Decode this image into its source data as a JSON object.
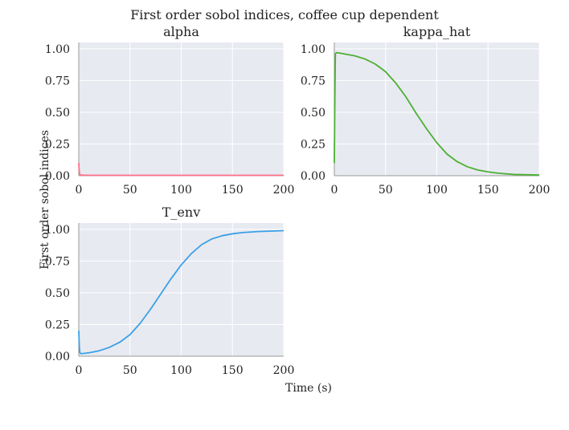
{
  "figure": {
    "title": "First order sobol indices, coffee cup dependent",
    "xlabel": "Time (s)",
    "ylabel": "First order sobol indices"
  },
  "colors": {
    "panel_bg": "#E8EAF1",
    "grid": "#FFFFFF",
    "axis_line": "#999999",
    "alpha": "#FF6F8A",
    "kappa_hat": "#4CB034",
    "T_env": "#3BA0E6"
  },
  "chart_data": [
    {
      "type": "line",
      "title": "alpha",
      "xlim": [
        0,
        200
      ],
      "ylim": [
        0,
        1.05
      ],
      "xticks": [
        0,
        50,
        100,
        150,
        200
      ],
      "yticks": [
        "0.00",
        "0.25",
        "0.50",
        "0.75",
        "1.00"
      ],
      "grid": true,
      "series": [
        {
          "color_key": "alpha",
          "x": [
            0,
            0.5,
            1,
            2,
            5,
            10,
            25,
            50,
            100,
            150,
            200
          ],
          "y": [
            0.1,
            0.03,
            0.01,
            0.005,
            0.004,
            0.003,
            0.003,
            0.003,
            0.003,
            0.003,
            0.003
          ]
        }
      ]
    },
    {
      "type": "line",
      "title": "kappa_hat",
      "xlim": [
        0,
        200
      ],
      "ylim": [
        0,
        1.05
      ],
      "xticks": [
        0,
        50,
        100,
        150,
        200
      ],
      "yticks": [
        "0.00",
        "0.25",
        "0.50",
        "0.75",
        "1.00"
      ],
      "grid": true,
      "series": [
        {
          "color_key": "kappa_hat",
          "x": [
            0,
            0.5,
            1,
            2,
            5,
            10,
            20,
            30,
            40,
            50,
            60,
            70,
            80,
            90,
            100,
            110,
            120,
            130,
            140,
            150,
            160,
            175,
            200
          ],
          "y": [
            0.1,
            0.6,
            0.96,
            0.97,
            0.967,
            0.96,
            0.945,
            0.92,
            0.88,
            0.82,
            0.73,
            0.62,
            0.49,
            0.37,
            0.26,
            0.17,
            0.11,
            0.07,
            0.045,
            0.03,
            0.02,
            0.01,
            0.005
          ]
        }
      ]
    },
    {
      "type": "line",
      "title": "T_env",
      "xlim": [
        0,
        200
      ],
      "ylim": [
        0,
        1.05
      ],
      "xticks": [
        0,
        50,
        100,
        150,
        200
      ],
      "yticks": [
        "0.00",
        "0.25",
        "0.50",
        "0.75",
        "1.00"
      ],
      "grid": true,
      "series": [
        {
          "color_key": "T_env",
          "x": [
            0,
            0.5,
            1,
            2,
            5,
            10,
            20,
            30,
            40,
            50,
            60,
            70,
            80,
            90,
            100,
            110,
            120,
            130,
            140,
            150,
            160,
            175,
            200
          ],
          "y": [
            0.2,
            0.08,
            0.03,
            0.02,
            0.022,
            0.027,
            0.043,
            0.07,
            0.11,
            0.17,
            0.26,
            0.37,
            0.49,
            0.61,
            0.72,
            0.81,
            0.88,
            0.925,
            0.95,
            0.965,
            0.975,
            0.983,
            0.99
          ]
        }
      ]
    }
  ]
}
